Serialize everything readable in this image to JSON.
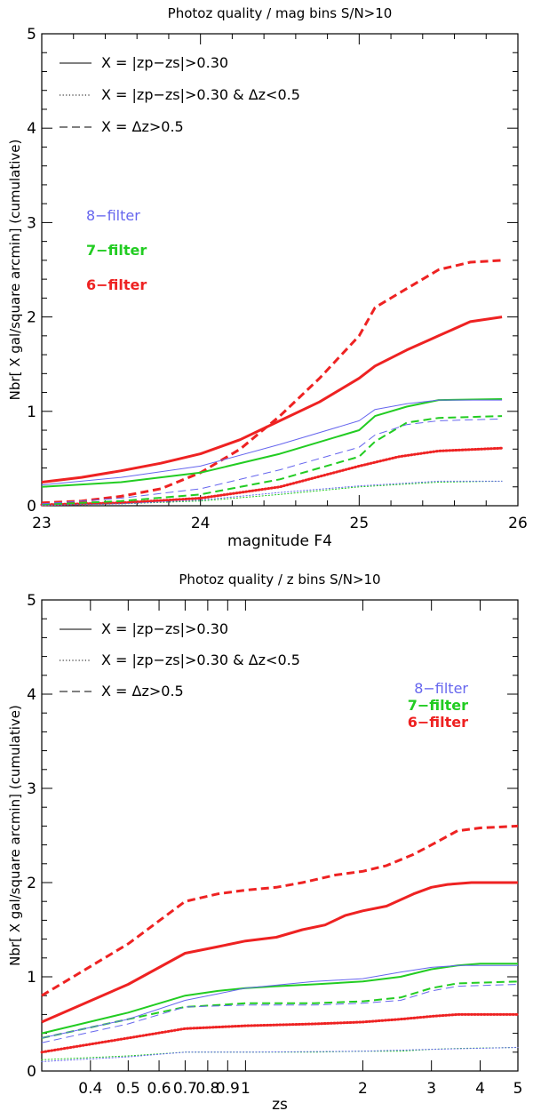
{
  "chart_data": [
    {
      "type": "line",
      "title": "Photoz quality / mag bins  S/N>10",
      "xlabel": "magnitude F4",
      "ylabel": "Nbr[ X gal/square arcmin] (cumulative)",
      "xlim": [
        23,
        26
      ],
      "ylim": [
        0,
        5
      ],
      "xscale": "linear",
      "xticks": [
        {
          "value": 23,
          "label": "23"
        },
        {
          "value": 24,
          "label": "24"
        },
        {
          "value": 25,
          "label": "25"
        },
        {
          "value": 26,
          "label": "26"
        }
      ],
      "yticks": [
        {
          "value": 0,
          "label": "0"
        },
        {
          "value": 1,
          "label": "1"
        },
        {
          "value": 2,
          "label": "2"
        },
        {
          "value": 3,
          "label": "3"
        },
        {
          "value": 4,
          "label": "4"
        },
        {
          "value": 5,
          "label": "5"
        }
      ],
      "style_legend": [
        {
          "style": "solid",
          "label": "X = |zp−zs|>0.30"
        },
        {
          "style": "dotted",
          "label": "X = |zp−zs|>0.30 & Δz<0.5"
        },
        {
          "style": "dashed",
          "label": "X = Δz>0.5"
        }
      ],
      "color_legend": [
        {
          "label": "8−filter",
          "color": "#6666ee"
        },
        {
          "label": "7−filter",
          "color": "#22cc22"
        },
        {
          "label": "6−filter",
          "color": "#ee2222"
        }
      ],
      "series": [
        {
          "name": "6-filter |zp-zs|>0.30",
          "filter": "6-filter",
          "style": "solid",
          "color": "#ee2222",
          "weight": "thick",
          "x": [
            23.0,
            23.25,
            23.5,
            23.75,
            24.0,
            24.25,
            24.5,
            24.75,
            25.0,
            25.1,
            25.3,
            25.5,
            25.7,
            25.9
          ],
          "y": [
            0.25,
            0.3,
            0.37,
            0.45,
            0.55,
            0.7,
            0.9,
            1.1,
            1.35,
            1.48,
            1.65,
            1.8,
            1.95,
            2.0
          ]
        },
        {
          "name": "6-filter |zp-zs|>0.30 & dz<0.5",
          "filter": "6-filter",
          "style": "dotted",
          "color": "#ee2222",
          "weight": "thick",
          "x": [
            23.0,
            23.5,
            24.0,
            24.5,
            25.0,
            25.25,
            25.5,
            25.9
          ],
          "y": [
            0.01,
            0.03,
            0.08,
            0.2,
            0.42,
            0.52,
            0.58,
            0.61
          ]
        },
        {
          "name": "6-filter dz>0.5",
          "filter": "6-filter",
          "style": "dashed",
          "color": "#ee2222",
          "weight": "thick",
          "x": [
            23.0,
            23.25,
            23.5,
            23.75,
            24.0,
            24.25,
            24.5,
            24.75,
            25.0,
            25.1,
            25.3,
            25.5,
            25.7,
            25.9
          ],
          "y": [
            0.03,
            0.05,
            0.1,
            0.18,
            0.35,
            0.6,
            0.95,
            1.35,
            1.8,
            2.1,
            2.3,
            2.5,
            2.58,
            2.6
          ]
        },
        {
          "name": "7-filter |zp-zs|>0.30",
          "filter": "7-filter",
          "style": "solid",
          "color": "#22cc22",
          "weight": "medium",
          "x": [
            23.0,
            23.5,
            24.0,
            24.5,
            25.0,
            25.1,
            25.3,
            25.5,
            25.9
          ],
          "y": [
            0.2,
            0.25,
            0.35,
            0.55,
            0.8,
            0.95,
            1.05,
            1.12,
            1.13
          ]
        },
        {
          "name": "7-filter |zp-zs|>0.30 & dz<0.5",
          "filter": "7-filter",
          "style": "dotted",
          "color": "#22cc22",
          "weight": "thin",
          "x": [
            23.0,
            23.5,
            24.0,
            24.5,
            25.0,
            25.5,
            25.9
          ],
          "y": [
            0.005,
            0.02,
            0.05,
            0.12,
            0.2,
            0.25,
            0.26
          ]
        },
        {
          "name": "7-filter dz>0.5",
          "filter": "7-filter",
          "style": "dashed",
          "color": "#22cc22",
          "weight": "medium",
          "x": [
            23.0,
            23.5,
            24.0,
            24.5,
            25.0,
            25.1,
            25.3,
            25.5,
            25.9
          ],
          "y": [
            0.01,
            0.05,
            0.12,
            0.28,
            0.52,
            0.68,
            0.88,
            0.93,
            0.95
          ]
        },
        {
          "name": "8-filter |zp-zs|>0.30",
          "filter": "8-filter",
          "style": "solid",
          "color": "#6666ee",
          "weight": "thin",
          "x": [
            23.0,
            23.5,
            24.0,
            24.5,
            25.0,
            25.1,
            25.3,
            25.5,
            25.9
          ],
          "y": [
            0.22,
            0.3,
            0.42,
            0.65,
            0.9,
            1.02,
            1.08,
            1.12,
            1.12
          ]
        },
        {
          "name": "8-filter |zp-zs|>0.30 & dz<0.5",
          "filter": "8-filter",
          "style": "dotted",
          "color": "#6666ee",
          "weight": "thin",
          "x": [
            23.0,
            23.5,
            24.0,
            24.5,
            25.0,
            25.5,
            25.9
          ],
          "y": [
            0.005,
            0.02,
            0.06,
            0.14,
            0.21,
            0.26,
            0.26
          ]
        },
        {
          "name": "8-filter dz>0.5",
          "filter": "8-filter",
          "style": "dashed",
          "color": "#6666ee",
          "weight": "thin",
          "x": [
            23.0,
            23.5,
            24.0,
            24.5,
            25.0,
            25.1,
            25.3,
            25.5,
            25.9
          ],
          "y": [
            0.02,
            0.08,
            0.18,
            0.38,
            0.62,
            0.75,
            0.86,
            0.9,
            0.92
          ]
        }
      ]
    },
    {
      "type": "line",
      "title": "Photoz quality / z bins  S/N>10",
      "xlabel": "zs",
      "ylabel": "Nbr[ X gal/square arcmin] (cumulative)",
      "xlim": [
        0.3,
        5
      ],
      "ylim": [
        0,
        5
      ],
      "xscale": "log",
      "xticks": [
        {
          "value": 0.4,
          "label": "0.4"
        },
        {
          "value": 0.5,
          "label": "0.5"
        },
        {
          "value": 0.6,
          "label": "0.6"
        },
        {
          "value": 0.7,
          "label": "0.7"
        },
        {
          "value": 0.8,
          "label": "0.8"
        },
        {
          "value": 0.9,
          "label": "0.9"
        },
        {
          "value": 1,
          "label": "1"
        },
        {
          "value": 2,
          "label": "2"
        },
        {
          "value": 3,
          "label": "3"
        },
        {
          "value": 4,
          "label": "4"
        },
        {
          "value": 5,
          "label": "5"
        }
      ],
      "yticks": [
        {
          "value": 0,
          "label": "0"
        },
        {
          "value": 1,
          "label": "1"
        },
        {
          "value": 2,
          "label": "2"
        },
        {
          "value": 3,
          "label": "3"
        },
        {
          "value": 4,
          "label": "4"
        },
        {
          "value": 5,
          "label": "5"
        }
      ],
      "style_legend": [
        {
          "style": "solid",
          "label": "X = |zp−zs|>0.30"
        },
        {
          "style": "dotted",
          "label": "X = |zp−zs|>0.30 & Δz<0.5"
        },
        {
          "style": "dashed",
          "label": "X = Δz>0.5"
        }
      ],
      "color_legend": [
        {
          "label": "8−filter",
          "color": "#6666ee"
        },
        {
          "label": "7−filter",
          "color": "#22cc22"
        },
        {
          "label": "6−filter",
          "color": "#ee2222"
        }
      ],
      "series": [
        {
          "name": "6-filter |zp-zs|>0.30",
          "filter": "6-filter",
          "style": "solid",
          "color": "#ee2222",
          "weight": "thick",
          "x": [
            0.3,
            0.5,
            0.7,
            0.85,
            1.0,
            1.2,
            1.4,
            1.6,
            1.8,
            2.0,
            2.3,
            2.7,
            3.0,
            3.3,
            3.8,
            4.5,
            5.0
          ],
          "y": [
            0.52,
            0.92,
            1.25,
            1.32,
            1.38,
            1.42,
            1.5,
            1.55,
            1.65,
            1.7,
            1.75,
            1.88,
            1.95,
            1.98,
            2.0,
            2.0,
            2.0
          ]
        },
        {
          "name": "6-filter |zp-zs|>0.30 & dz<0.5",
          "filter": "6-filter",
          "style": "dotted",
          "color": "#ee2222",
          "weight": "thick",
          "x": [
            0.3,
            0.5,
            0.7,
            1.0,
            1.5,
            2.0,
            2.5,
            3.0,
            3.5,
            4.0,
            5.0
          ],
          "y": [
            0.2,
            0.35,
            0.45,
            0.48,
            0.5,
            0.52,
            0.55,
            0.58,
            0.6,
            0.6,
            0.6
          ]
        },
        {
          "name": "6-filter dz>0.5",
          "filter": "6-filter",
          "style": "dashed",
          "color": "#ee2222",
          "weight": "thick",
          "x": [
            0.3,
            0.5,
            0.7,
            0.85,
            1.0,
            1.2,
            1.4,
            1.7,
            2.0,
            2.3,
            2.7,
            3.0,
            3.5,
            4.0,
            5.0
          ],
          "y": [
            0.8,
            1.35,
            1.8,
            1.88,
            1.92,
            1.95,
            2.0,
            2.08,
            2.12,
            2.18,
            2.3,
            2.4,
            2.55,
            2.58,
            2.6
          ]
        },
        {
          "name": "7-filter |zp-zs|>0.30",
          "filter": "7-filter",
          "style": "solid",
          "color": "#22cc22",
          "weight": "medium",
          "x": [
            0.3,
            0.5,
            0.7,
            0.85,
            1.0,
            1.2,
            1.5,
            2.0,
            2.5,
            3.0,
            3.5,
            4.0,
            5.0
          ],
          "y": [
            0.4,
            0.62,
            0.8,
            0.85,
            0.88,
            0.9,
            0.92,
            0.95,
            1.0,
            1.08,
            1.12,
            1.14,
            1.14
          ]
        },
        {
          "name": "7-filter |zp-zs|>0.30 & dz<0.5",
          "filter": "7-filter",
          "style": "dotted",
          "color": "#22cc22",
          "weight": "thin",
          "x": [
            0.3,
            0.5,
            0.7,
            1.0,
            1.5,
            2.0,
            2.5,
            3.0,
            3.5,
            5.0
          ],
          "y": [
            0.12,
            0.16,
            0.2,
            0.2,
            0.2,
            0.21,
            0.21,
            0.23,
            0.24,
            0.25
          ]
        },
        {
          "name": "7-filter dz>0.5",
          "filter": "7-filter",
          "style": "dashed",
          "color": "#22cc22",
          "weight": "medium",
          "x": [
            0.3,
            0.5,
            0.7,
            0.85,
            1.0,
            1.5,
            2.0,
            2.5,
            3.0,
            3.5,
            5.0
          ],
          "y": [
            0.35,
            0.55,
            0.68,
            0.7,
            0.72,
            0.72,
            0.74,
            0.78,
            0.88,
            0.93,
            0.95
          ]
        },
        {
          "name": "8-filter |zp-zs|>0.30",
          "filter": "8-filter",
          "style": "solid",
          "color": "#6666ee",
          "weight": "thin",
          "x": [
            0.3,
            0.5,
            0.7,
            0.85,
            1.0,
            1.5,
            2.0,
            2.5,
            3.0,
            3.5,
            5.0
          ],
          "y": [
            0.35,
            0.55,
            0.75,
            0.82,
            0.88,
            0.95,
            0.98,
            1.05,
            1.1,
            1.12,
            1.12
          ]
        },
        {
          "name": "8-filter |zp-zs|>0.30 & dz<0.5",
          "filter": "8-filter",
          "style": "dotted",
          "color": "#6666ee",
          "weight": "thin",
          "x": [
            0.3,
            0.5,
            0.7,
            1.0,
            2.0,
            3.0,
            5.0
          ],
          "y": [
            0.1,
            0.15,
            0.2,
            0.2,
            0.21,
            0.23,
            0.25
          ]
        },
        {
          "name": "8-filter dz>0.5",
          "filter": "8-filter",
          "style": "dashed",
          "color": "#6666ee",
          "weight": "thin",
          "x": [
            0.3,
            0.5,
            0.7,
            1.0,
            1.5,
            2.0,
            2.5,
            3.0,
            3.5,
            5.0
          ],
          "y": [
            0.3,
            0.5,
            0.68,
            0.7,
            0.7,
            0.72,
            0.75,
            0.85,
            0.9,
            0.92
          ]
        }
      ]
    }
  ]
}
